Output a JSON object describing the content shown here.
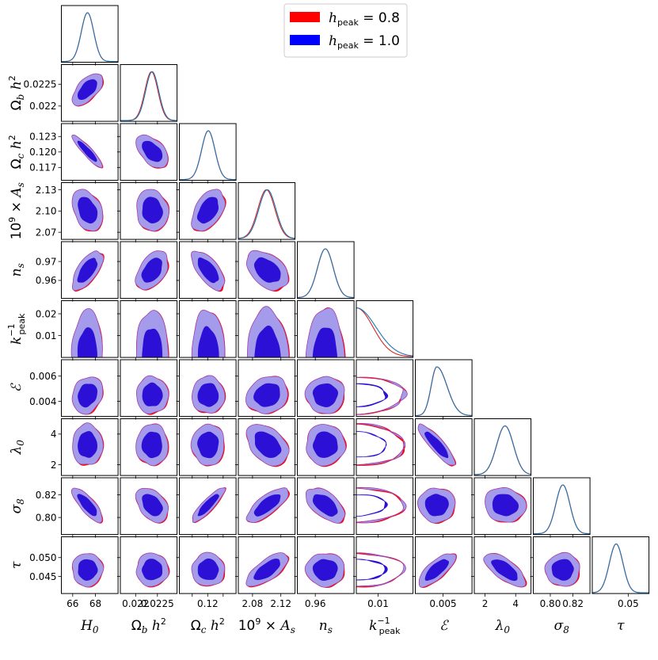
{
  "chart_data": {
    "type": "triangle-corner",
    "parameters": [
      {
        "key": "H0",
        "label": "H",
        "label_sub": "0",
        "range": [
          65.0,
          70.0
        ],
        "ticks": [
          66,
          68
        ],
        "tick_labels": [
          "66",
          "68"
        ],
        "mean": 67.3,
        "sd": 0.55
      },
      {
        "key": "omb",
        "label": "Ω",
        "label_sub": "b",
        "label_post": "h",
        "label_sup": "2",
        "range": [
          0.02165,
          0.02295
        ],
        "ticks": [
          0.022,
          0.0225
        ],
        "tick_labels": [
          "0.022",
          "0.0225"
        ],
        "mean": 0.02238,
        "sd": 0.00015
      },
      {
        "key": "omc",
        "label": "Ω",
        "label_sub": "c",
        "label_post": "h",
        "label_sup": "2",
        "range": [
          0.1145,
          0.1255
        ],
        "ticks": [
          0.117,
          0.12,
          0.123
        ],
        "tick_labels": [
          "0.117",
          "0.120",
          "0.123"
        ],
        "xtick_labels": [
          "",
          "0.12",
          ""
        ],
        "mean": 0.1201,
        "sd": 0.0013
      },
      {
        "key": "As",
        "label": "10",
        "label_sup": "9",
        "label_post": "× A",
        "label_sub": "s",
        "range": [
          2.06,
          2.14
        ],
        "ticks": [
          2.07,
          2.1,
          2.13
        ],
        "tick_labels": [
          "2.07",
          "2.10",
          "2.13"
        ],
        "xticks": [
          2.08,
          2.12
        ],
        "xtick_labels": [
          "2.08",
          "2.12"
        ],
        "mean": 2.101,
        "sd": 0.012
      },
      {
        "key": "ns",
        "label": "n",
        "label_sub": "s",
        "range": [
          0.9505,
          0.9805
        ],
        "ticks": [
          0.96,
          0.97
        ],
        "tick_labels": [
          "0.96",
          "0.97"
        ],
        "xticks": [
          0.96
        ],
        "xtick_labels": [
          "0.96"
        ],
        "mean": 0.9653,
        "sd": 0.0042
      },
      {
        "key": "kpeak",
        "label": "k",
        "label_sup": "−1",
        "label_sub": "peak",
        "range": [
          0.0,
          0.026
        ],
        "ticks": [
          0.01,
          0.02
        ],
        "tick_labels": [
          "0.01",
          "0.02"
        ],
        "xticks": [
          0.01
        ],
        "xtick_labels": [
          "0.01"
        ],
        "mean": 0.0,
        "sd": 0.009
      },
      {
        "key": "eps",
        "label": "ℰ",
        "range": [
          0.0028,
          0.0073
        ],
        "ticks": [
          0.004,
          0.006
        ],
        "tick_labels": [
          "0.004",
          "0.006"
        ],
        "xticks": [
          0.005
        ],
        "xtick_labels": [
          "0.005"
        ],
        "mean": 0.0045,
        "sd": 0.0006
      },
      {
        "key": "lam0",
        "label": "λ",
        "label_sub": "0",
        "range": [
          1.3,
          5.0
        ],
        "ticks": [
          2,
          4
        ],
        "tick_labels": [
          "2",
          "4"
        ],
        "xticks": [
          2,
          4
        ],
        "xtick_labels": [
          "2",
          "4"
        ],
        "mean": 3.3,
        "sd": 0.55
      },
      {
        "key": "s8",
        "label": "σ",
        "label_sub": "8",
        "range": [
          0.785,
          0.835
        ],
        "ticks": [
          0.8,
          0.82
        ],
        "tick_labels": [
          "0.80",
          "0.82"
        ],
        "mean": 0.811,
        "sd": 0.0062
      },
      {
        "key": "tau",
        "label": "τ",
        "range": [
          0.0405,
          0.0555
        ],
        "ticks": [
          0.045,
          0.05
        ],
        "tick_labels": [
          "0.045",
          "0.050"
        ],
        "xticks": [
          0.05
        ],
        "xtick_labels": [
          "0.05"
        ],
        "mean": 0.0468,
        "sd": 0.0018
      }
    ],
    "correlations": [
      {
        "pair": [
          "omb",
          "H0"
        ],
        "r": 0.6
      },
      {
        "pair": [
          "omc",
          "H0"
        ],
        "r": -0.92
      },
      {
        "pair": [
          "omc",
          "omb"
        ],
        "r": -0.5
      },
      {
        "pair": [
          "As",
          "H0"
        ],
        "r": -0.35
      },
      {
        "pair": [
          "As",
          "omb"
        ],
        "r": -0.1
      },
      {
        "pair": [
          "As",
          "omc"
        ],
        "r": 0.45
      },
      {
        "pair": [
          "ns",
          "H0"
        ],
        "r": 0.65
      },
      {
        "pair": [
          "ns",
          "omb"
        ],
        "r": 0.45
      },
      {
        "pair": [
          "ns",
          "omc"
        ],
        "r": -0.65
      },
      {
        "pair": [
          "ns",
          "As"
        ],
        "r": -0.4
      },
      {
        "pair": [
          "eps",
          "H0"
        ],
        "r": 0.2
      },
      {
        "pair": [
          "eps",
          "As"
        ],
        "r": 0.15
      },
      {
        "pair": [
          "lam0",
          "As"
        ],
        "r": -0.4
      },
      {
        "pair": [
          "lam0",
          "eps"
        ],
        "r": -0.88
      },
      {
        "pair": [
          "s8",
          "H0"
        ],
        "r": -0.8
      },
      {
        "pair": [
          "s8",
          "omb"
        ],
        "r": -0.4
      },
      {
        "pair": [
          "s8",
          "omc"
        ],
        "r": 0.88
      },
      {
        "pair": [
          "s8",
          "As"
        ],
        "r": 0.75
      },
      {
        "pair": [
          "s8",
          "ns"
        ],
        "r": -0.55
      },
      {
        "pair": [
          "s8",
          "lam0"
        ],
        "r": -0.1
      },
      {
        "pair": [
          "tau",
          "As"
        ],
        "r": 0.7
      },
      {
        "pair": [
          "tau",
          "eps"
        ],
        "r": 0.75
      },
      {
        "pair": [
          "tau",
          "lam0"
        ],
        "r": -0.7
      }
    ],
    "series": [
      {
        "name": "h_peak = 0.8",
        "legend_label": "h",
        "legend_sub": "peak",
        "legend_value": "= 0.8",
        "color": "#ff0000"
      },
      {
        "name": "h_peak = 1.0",
        "legend_label": "h",
        "legend_sub": "peak",
        "legend_value": "= 1.0",
        "color": "#0000ff"
      }
    ],
    "diagonal_line_color": "#1f77b4",
    "diagonal_line_color_alt": "#d62728",
    "contour_fill_outer": "#a49bea",
    "contour_fill_inner": "#2d10d6",
    "contour_edge": "#a23fa8",
    "contour_levels": [
      "68%",
      "95%"
    ],
    "legend_position": "top-center",
    "grid": false
  }
}
